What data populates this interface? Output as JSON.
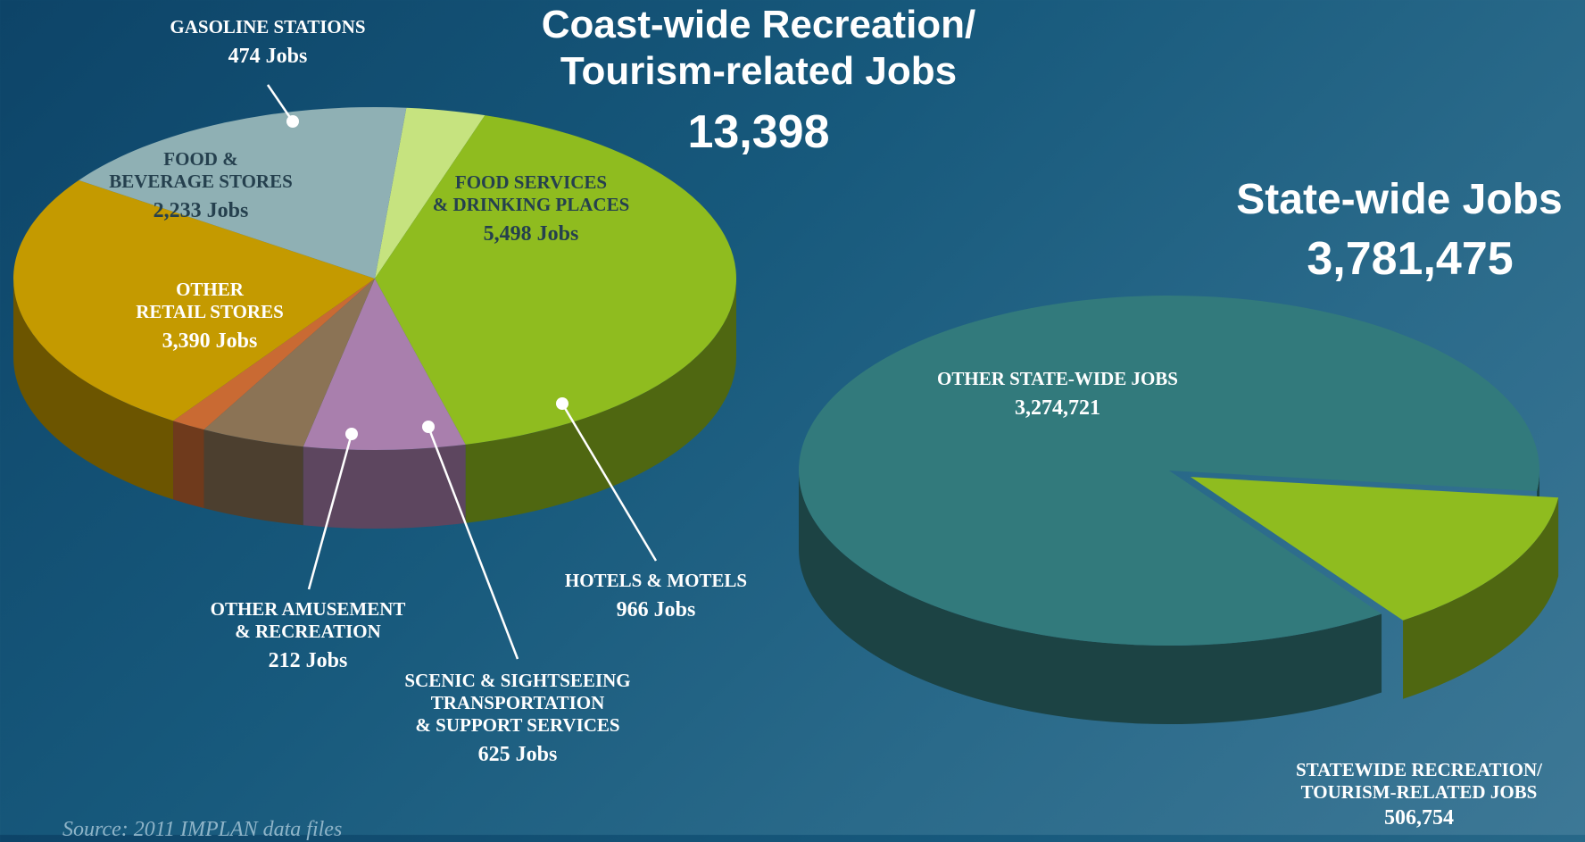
{
  "charts": {
    "coast": {
      "title_line1": "Coast-wide Recreation/",
      "title_line2": "Tourism-related Jobs",
      "total": "13,398"
    },
    "state": {
      "title": "State-wide Jobs",
      "total": "3,781,475"
    }
  },
  "labels": {
    "gas": {
      "line1": "GASOLINE STATIONS",
      "value": "474 Jobs"
    },
    "foodbev": {
      "line1": "FOOD &",
      "line2": "BEVERAGE STORES",
      "value": "2,233 Jobs"
    },
    "foodsvc": {
      "line1": "FOOD SERVICES",
      "line2": "& DRINKING PLACES",
      "value": "5,498 Jobs"
    },
    "retail": {
      "line1": "OTHER",
      "line2": "RETAIL STORES",
      "value": "3,390 Jobs"
    },
    "hotels": {
      "line1": "HOTELS & MOTELS",
      "value": "966 Jobs"
    },
    "amuse": {
      "line1": "OTHER AMUSEMENT",
      "line2": "& RECREATION",
      "value": "212 Jobs"
    },
    "scenic": {
      "line1": "SCENIC & SIGHTSEEING",
      "line2": "TRANSPORTATION",
      "line3": "& SUPPORT SERVICES",
      "value": "625 Jobs"
    },
    "otherstate": {
      "line1": "OTHER STATE-WIDE JOBS",
      "value": "3,274,721"
    },
    "statewide": {
      "line1": "STATEWIDE RECREATION/",
      "line2": "TOURISM-RELATED JOBS",
      "value": "506,754"
    }
  },
  "source": "Source: 2011 IMPLAN data files",
  "chart_data": [
    {
      "type": "pie",
      "title": "Coast-wide Recreation/ Tourism-related Jobs 13,398",
      "categories": [
        "Gasoline Stations",
        "Food Services & Drinking Places",
        "Hotels & Motels",
        "Scenic & Sightseeing Transportation & Support Services",
        "Other Amusement & Recreation",
        "Other Retail Stores",
        "Food & Beverage Stores"
      ],
      "values": [
        474,
        5498,
        966,
        625,
        212,
        3390,
        2233
      ],
      "colors": [
        "#c6e37f",
        "#8fbc1f",
        "#a97fad",
        "#8b7355",
        "#c96a33",
        "#c49a00",
        "#8fb0b4"
      ]
    },
    {
      "type": "pie",
      "title": "State-wide Jobs 3,781,475",
      "categories": [
        "Other State-wide Jobs",
        "Statewide Recreation/Tourism-related Jobs"
      ],
      "values": [
        3274721,
        506754
      ],
      "colors": [
        "#327a7c",
        "#8fbc1f"
      ]
    }
  ]
}
